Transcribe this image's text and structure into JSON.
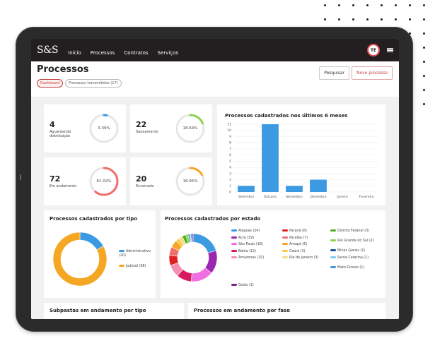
{
  "topbar": {
    "logo": "S&S",
    "nav": [
      "Início",
      "Processos",
      "Contratos",
      "Serviços"
    ],
    "avatar_initials": "TE"
  },
  "header": {
    "title": "Processos",
    "tabs": [
      "Dashboard",
      "Processos transmitidos (17)"
    ],
    "buttons": {
      "search": "Pesquisar",
      "new": "Novo processo"
    }
  },
  "stats": [
    {
      "value": "4",
      "label": "Aguardando distribuição",
      "percent_label": "3.39%",
      "percent": 3.39,
      "color": "#3b9ae1"
    },
    {
      "value": "22",
      "label": "Saneamento",
      "percent_label": "18.64%",
      "percent": 18.64,
      "color": "#8ed14f"
    },
    {
      "value": "72",
      "label": "Em andamento",
      "percent_label": "61.02%",
      "percent": 61.02,
      "color": "#ef6f6c"
    },
    {
      "value": "20",
      "label": "Encerrado",
      "percent_label": "16.95%",
      "percent": 16.95,
      "color": "#f5a623"
    }
  ],
  "bar_chart": {
    "title": "Processos cadastrados nos últimos 6 meses"
  },
  "chart_data": [
    {
      "type": "bar",
      "title": "Processos cadastrados nos últimos 6 meses",
      "categories": [
        "Setembro",
        "Outubro",
        "Novembro",
        "Dezembro",
        "Janeiro",
        "Fevereiro"
      ],
      "values": [
        1,
        11,
        1,
        2,
        0,
        0
      ],
      "ylim": [
        0,
        11
      ],
      "yticks": [
        0,
        1,
        2,
        3,
        4,
        5,
        6,
        7,
        8,
        9,
        10,
        11
      ],
      "grid": true,
      "color": "#3b9ae1"
    },
    {
      "type": "pie",
      "title": "Processos cadastrados por tipo",
      "donut": true,
      "slices": [
        {
          "label": "Administrativo (20)",
          "value": 20,
          "color": "#3b9ae1"
        },
        {
          "label": "Judicial (98)",
          "value": 98,
          "color": "#f5a623"
        }
      ],
      "legend": "right"
    },
    {
      "type": "pie",
      "title": "Processos cadastrados por estado",
      "donut": true,
      "slices": [
        {
          "label": "Alagoas (24)",
          "value": 24,
          "color": "#3b9ae1"
        },
        {
          "label": "Acre (19)",
          "value": 19,
          "color": "#9b27b0"
        },
        {
          "label": "São Paulo (18)",
          "value": 18,
          "color": "#ef6fe0"
        },
        {
          "label": "Bahia (12)",
          "value": 12,
          "color": "#d81b60"
        },
        {
          "label": "Amazonas (10)",
          "value": 10,
          "color": "#f48fb1"
        },
        {
          "label": "Paraná (8)",
          "value": 8,
          "color": "#e02020"
        },
        {
          "label": "Paraíba (7)",
          "value": 7,
          "color": "#ef6f6c"
        },
        {
          "label": "Amapá (6)",
          "value": 6,
          "color": "#f5a623"
        },
        {
          "label": "Ceará (3)",
          "value": 3,
          "color": "#f7c948"
        },
        {
          "label": "Rio de Janeiro (3)",
          "value": 3,
          "color": "#f5d98b"
        },
        {
          "label": "Distrito Federal (3)",
          "value": 3,
          "color": "#4caf1e"
        },
        {
          "label": "Rio Grande do Sul (2)",
          "value": 2,
          "color": "#8ed14f"
        },
        {
          "label": "Minas Gerais (1)",
          "value": 1,
          "color": "#1e4fa0"
        },
        {
          "label": "Santa Catarina (1)",
          "value": 1,
          "color": "#7fc8f8"
        },
        {
          "label": "Mato Grosso (1)",
          "value": 1,
          "color": "#4a90e2"
        },
        {
          "label": "Goiás (1)",
          "value": 1,
          "color": "#7b1f8a"
        }
      ],
      "legend": "right"
    }
  ],
  "bottom_cards": {
    "subpastas": "Subpastas em andamento por tipo",
    "fase": "Processos em andamento por fase"
  }
}
